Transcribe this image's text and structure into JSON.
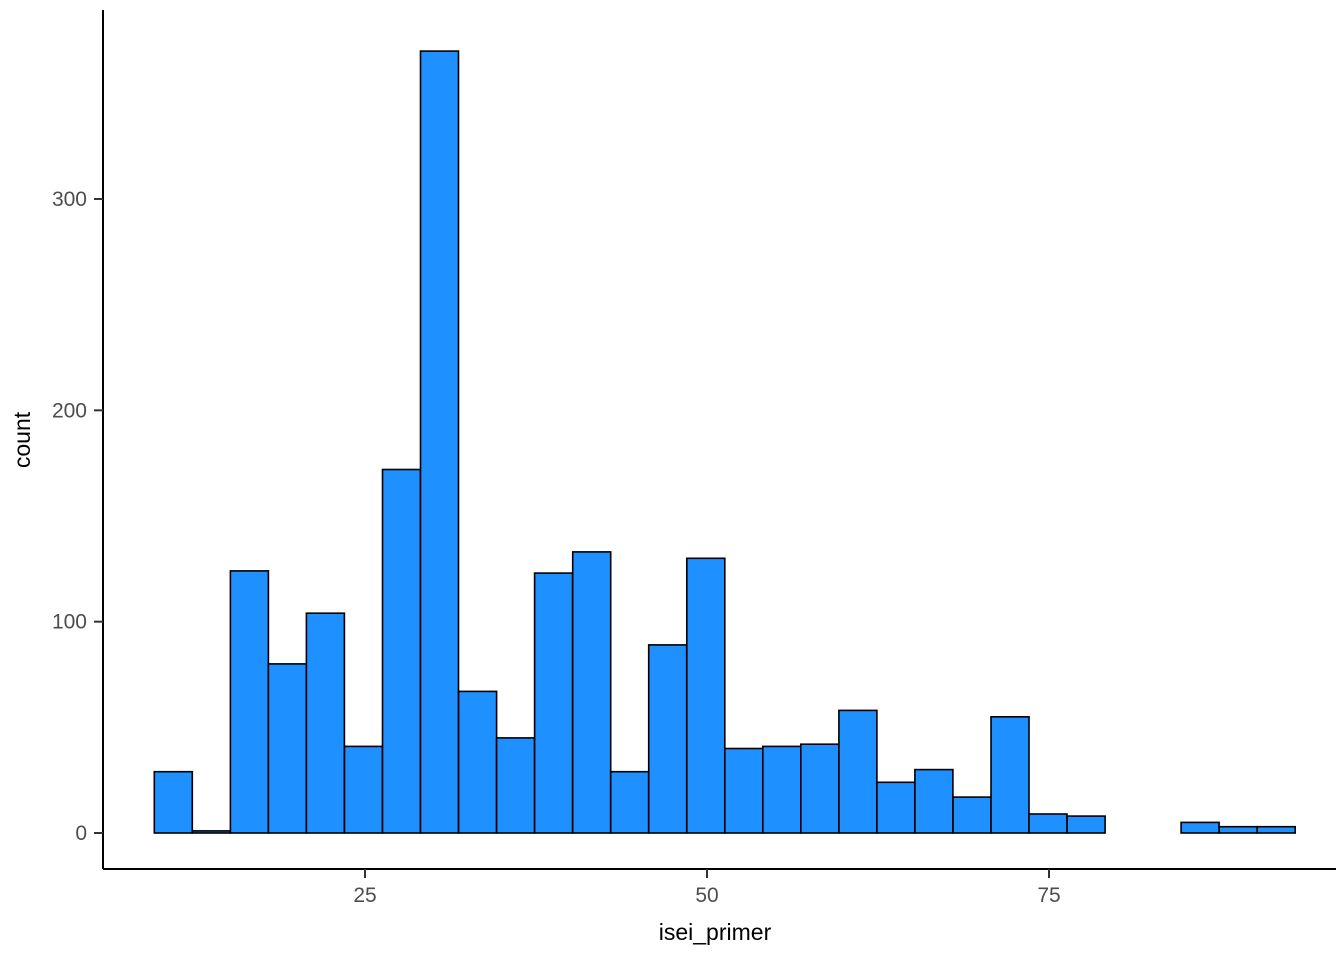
{
  "chart_data": {
    "type": "histogram",
    "title": "",
    "xlabel": "isei_primer",
    "ylabel": "count",
    "legend": "none",
    "grid": "off",
    "bar_fill": "#1E90FF",
    "bar_stroke": "#000000",
    "axis_line_color": "#000000",
    "tick_label_color": "#4d4d4d",
    "bin_start": 9.6,
    "binwidth": 2.78,
    "counts": [
      29,
      1,
      124,
      80,
      104,
      41,
      172,
      370,
      67,
      45,
      123,
      133,
      29,
      89,
      130,
      40,
      41,
      42,
      58,
      24,
      30,
      17,
      55,
      9,
      8,
      0,
      0,
      5,
      3,
      3
    ],
    "x_ticks": [
      25,
      50,
      75
    ],
    "y_ticks": [
      0,
      100,
      200,
      300
    ],
    "xlim": [
      7.5,
      95
    ],
    "ylim": [
      0,
      370
    ]
  }
}
